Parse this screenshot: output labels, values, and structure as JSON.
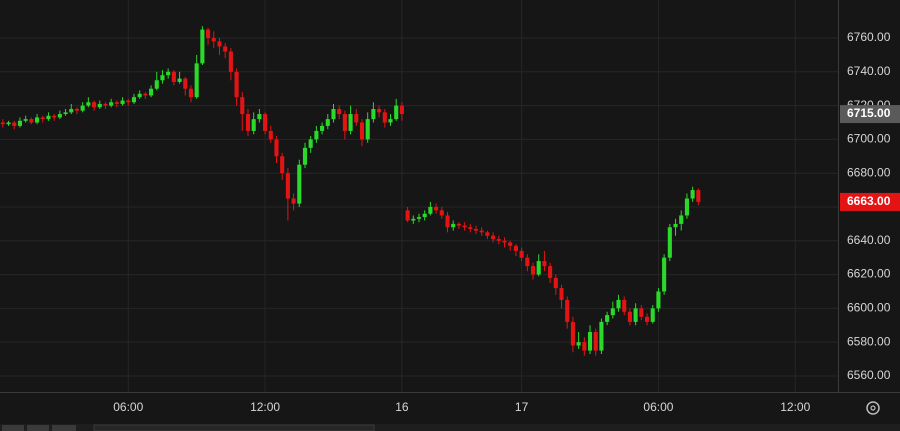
{
  "chart_data": {
    "type": "candlestick",
    "x": [
      0,
      1,
      2,
      3,
      4,
      5,
      6,
      7,
      8,
      9,
      10,
      11,
      12,
      13,
      14,
      15,
      16,
      17,
      18,
      19,
      20,
      21,
      22,
      23,
      24,
      25,
      26,
      27,
      28,
      29,
      30,
      31,
      32,
      33,
      34,
      35,
      36,
      37,
      38,
      39,
      40,
      41,
      42,
      43,
      44,
      45,
      46,
      47,
      48,
      49,
      50,
      51,
      52,
      53,
      54,
      55,
      56,
      57,
      58,
      59,
      60,
      61,
      62,
      63,
      64,
      65,
      66,
      67,
      68,
      69,
      70,
      71,
      72,
      73,
      74,
      75,
      76,
      77,
      78,
      79,
      80,
      81,
      82,
      83,
      84,
      85,
      86,
      87,
      88,
      89,
      90,
      91,
      92,
      93,
      94,
      95,
      96,
      97,
      98,
      99,
      100,
      101,
      102,
      103,
      104,
      105,
      106,
      107,
      108,
      109,
      110,
      111,
      112,
      113,
      114,
      115,
      116,
      117,
      118,
      119,
      120,
      121,
      122
    ],
    "ohlc": [
      [
        6710,
        6712,
        6707,
        6709
      ],
      [
        6709,
        6711,
        6708,
        6710
      ],
      [
        6710,
        6711,
        6706,
        6708
      ],
      [
        6708,
        6713,
        6707,
        6711
      ],
      [
        6711,
        6714,
        6710,
        6712
      ],
      [
        6712,
        6713,
        6709,
        6710
      ],
      [
        6710,
        6715,
        6709,
        6713
      ],
      [
        6713,
        6714,
        6710,
        6712
      ],
      [
        6712,
        6716,
        6711,
        6714
      ],
      [
        6714,
        6715,
        6711,
        6713
      ],
      [
        6713,
        6717,
        6712,
        6715
      ],
      [
        6715,
        6718,
        6714,
        6716
      ],
      [
        6716,
        6721,
        6715,
        6718
      ],
      [
        6718,
        6719,
        6715,
        6717
      ],
      [
        6717,
        6722,
        6716,
        6720
      ],
      [
        6720,
        6725,
        6719,
        6722
      ],
      [
        6722,
        6723,
        6717,
        6719
      ],
      [
        6719,
        6723,
        6718,
        6721
      ],
      [
        6721,
        6722,
        6718,
        6720
      ],
      [
        6720,
        6724,
        6719,
        6722
      ],
      [
        6722,
        6723,
        6719,
        6721
      ],
      [
        6721,
        6725,
        6720,
        6723
      ],
      [
        6723,
        6724,
        6720,
        6722
      ],
      [
        6722,
        6727,
        6721,
        6725
      ],
      [
        6725,
        6729,
        6724,
        6727
      ],
      [
        6727,
        6728,
        6724,
        6726
      ],
      [
        6726,
        6732,
        6725,
        6730
      ],
      [
        6730,
        6740,
        6729,
        6735
      ],
      [
        6735,
        6741,
        6733,
        6738
      ],
      [
        6738,
        6742,
        6736,
        6740
      ],
      [
        6740,
        6741,
        6732,
        6734
      ],
      [
        6734,
        6740,
        6733,
        6736
      ],
      [
        6736,
        6737,
        6726,
        6730
      ],
      [
        6730,
        6732,
        6722,
        6725
      ],
      [
        6725,
        6750,
        6724,
        6745
      ],
      [
        6745,
        6767,
        6744,
        6765
      ],
      [
        6765,
        6766,
        6756,
        6760
      ],
      [
        6760,
        6764,
        6754,
        6758
      ],
      [
        6758,
        6760,
        6750,
        6755
      ],
      [
        6755,
        6757,
        6748,
        6752
      ],
      [
        6752,
        6754,
        6735,
        6740
      ],
      [
        6740,
        6742,
        6720,
        6725
      ],
      [
        6725,
        6728,
        6705,
        6715
      ],
      [
        6715,
        6718,
        6702,
        6705
      ],
      [
        6705,
        6716,
        6703,
        6712
      ],
      [
        6712,
        6718,
        6710,
        6715
      ],
      [
        6715,
        6716,
        6703,
        6705
      ],
      [
        6705,
        6708,
        6698,
        6700
      ],
      [
        6700,
        6702,
        6686,
        6690
      ],
      [
        6690,
        6692,
        6676,
        6680
      ],
      [
        6680,
        6683,
        6652,
        6665
      ],
      [
        6665,
        6668,
        6658,
        6662
      ],
      [
        6662,
        6688,
        6660,
        6685
      ],
      [
        6685,
        6698,
        6683,
        6695
      ],
      [
        6695,
        6702,
        6692,
        6700
      ],
      [
        6700,
        6708,
        6698,
        6705
      ],
      [
        6705,
        6710,
        6703,
        6708
      ],
      [
        6708,
        6715,
        6706,
        6712
      ],
      [
        6712,
        6721,
        6710,
        6718
      ],
      [
        6718,
        6720,
        6712,
        6715
      ],
      [
        6715,
        6717,
        6700,
        6705
      ],
      [
        6705,
        6720,
        6703,
        6715
      ],
      [
        6715,
        6718,
        6708,
        6710
      ],
      [
        6710,
        6712,
        6696,
        6700
      ],
      [
        6700,
        6716,
        6698,
        6712
      ],
      [
        6712,
        6722,
        6710,
        6718
      ],
      [
        6718,
        6720,
        6713,
        6716
      ],
      [
        6716,
        6718,
        6707,
        6710
      ],
      [
        6710,
        6715,
        6708,
        6712
      ],
      [
        6712,
        6724,
        6711,
        6720
      ],
      [
        6720,
        6722,
        6711,
        6715
      ],
      [
        6658,
        6660,
        6651,
        6652
      ],
      [
        6652,
        6655,
        6650,
        6653
      ],
      [
        6653,
        6656,
        6651,
        6654
      ],
      [
        6654,
        6658,
        6652,
        6656
      ],
      [
        6656,
        6663,
        6655,
        6660
      ],
      [
        6660,
        6662,
        6656,
        6658
      ],
      [
        6658,
        6660,
        6653,
        6655
      ],
      [
        6655,
        6657,
        6645,
        6648
      ],
      [
        6648,
        6652,
        6646,
        6650
      ],
      [
        6650,
        6651,
        6647,
        6649
      ],
      [
        6649,
        6651,
        6646,
        6648
      ],
      [
        6648,
        6650,
        6645,
        6647
      ],
      [
        6647,
        6649,
        6644,
        6646
      ],
      [
        6646,
        6648,
        6643,
        6645
      ],
      [
        6645,
        6646,
        6641,
        6643
      ],
      [
        6643,
        6645,
        6639,
        6641
      ],
      [
        6641,
        6643,
        6638,
        6640
      ],
      [
        6640,
        6642,
        6636,
        6639
      ],
      [
        6639,
        6640,
        6634,
        6637
      ],
      [
        6637,
        6638,
        6631,
        6634
      ],
      [
        6634,
        6636,
        6628,
        6630
      ],
      [
        6630,
        6632,
        6622,
        6625
      ],
      [
        6625,
        6627,
        6617,
        6620
      ],
      [
        6620,
        6632,
        6619,
        6628
      ],
      [
        6628,
        6634,
        6622,
        6625
      ],
      [
        6625,
        6627,
        6615,
        6618
      ],
      [
        6618,
        6620,
        6608,
        6612
      ],
      [
        6612,
        6614,
        6600,
        6605
      ],
      [
        6605,
        6607,
        6588,
        6592
      ],
      [
        6592,
        6595,
        6574,
        6578
      ],
      [
        6578,
        6586,
        6576,
        6580
      ],
      [
        6580,
        6583,
        6572,
        6575
      ],
      [
        6575,
        6590,
        6573,
        6586
      ],
      [
        6586,
        6588,
        6572,
        6575
      ],
      [
        6575,
        6594,
        6573,
        6592
      ],
      [
        6592,
        6598,
        6590,
        6596
      ],
      [
        6596,
        6604,
        6594,
        6600
      ],
      [
        6600,
        6608,
        6598,
        6605
      ],
      [
        6605,
        6607,
        6596,
        6598
      ],
      [
        6598,
        6600,
        6590,
        6592
      ],
      [
        6592,
        6603,
        6590,
        6600
      ],
      [
        6600,
        6602,
        6593,
        6595
      ],
      [
        6595,
        6597,
        6590,
        6592
      ],
      [
        6592,
        6602,
        6591,
        6600
      ],
      [
        6600,
        6612,
        6598,
        6610
      ],
      [
        6610,
        6632,
        6608,
        6630
      ],
      [
        6630,
        6650,
        6628,
        6648
      ],
      [
        6648,
        6653,
        6643,
        6650
      ],
      [
        6650,
        6658,
        6646,
        6655
      ],
      [
        6655,
        6668,
        6653,
        6665
      ],
      [
        6665,
        6672,
        6663,
        6670
      ],
      [
        6670,
        6671,
        6661,
        6663
      ]
    ],
    "up_color": "#2bd92b",
    "down_color": "#e41414",
    "xlim": [
      -0.5,
      146.5
    ],
    "xticks": [
      {
        "value": 22,
        "label": "06:00"
      },
      {
        "value": 46,
        "label": "12:00"
      },
      {
        "value": 70,
        "label": "16"
      },
      {
        "value": 91,
        "label": "17"
      },
      {
        "value": 115,
        "label": "06:00"
      },
      {
        "value": 139,
        "label": "12:00"
      }
    ],
    "ylim": [
      6550.5,
      6782.5
    ],
    "yticks": [
      {
        "value": 6560,
        "label": "6560.00"
      },
      {
        "value": 6580,
        "label": "6580.00"
      },
      {
        "value": 6600,
        "label": "6600.00"
      },
      {
        "value": 6620,
        "label": "6620.00"
      },
      {
        "value": 6640,
        "label": "6640.00"
      },
      {
        "value": 6660,
        "label": "6660.00"
      },
      {
        "value": 6680,
        "label": "6680.00"
      },
      {
        "value": 6700,
        "label": "6700.00"
      },
      {
        "value": 6720,
        "label": "6720.00"
      },
      {
        "value": 6740,
        "label": "6740.00"
      },
      {
        "value": 6760,
        "label": "6760.00"
      }
    ],
    "price_labels": [
      {
        "value": 6715,
        "label": "6715.00",
        "color": "#5a5a5a"
      },
      {
        "value": 6663,
        "label": "6663.00",
        "color": "#e41414"
      }
    ],
    "grid": true
  }
}
